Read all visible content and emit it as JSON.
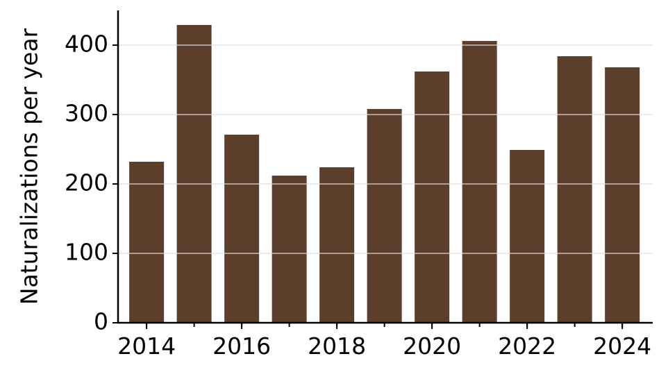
{
  "chart_data": {
    "type": "bar",
    "y_label": "Naturalizations per year",
    "x": [
      2014,
      2015,
      2016,
      2017,
      2018,
      2019,
      2020,
      2021,
      2022,
      2023,
      2024
    ],
    "values": [
      232,
      429,
      271,
      212,
      224,
      308,
      362,
      406,
      249,
      384,
      368
    ],
    "color": "#5c3f2b",
    "xlim": [
      2013.4,
      2024.64
    ],
    "xticks": [
      2014,
      2016,
      2018,
      2020,
      2022,
      2024
    ],
    "ylim": [
      0,
      450
    ],
    "yticks": [
      0,
      100,
      200,
      300,
      400
    ],
    "grid": true
  }
}
